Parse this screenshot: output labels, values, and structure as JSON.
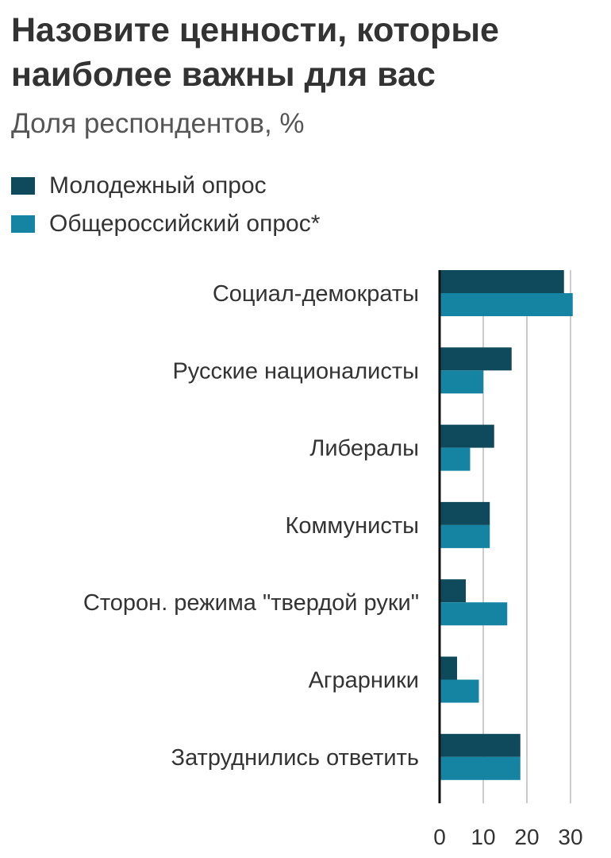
{
  "chart_data": {
    "type": "bar",
    "orientation": "horizontal",
    "title": "Назовите ценности, которые наиболее важны для вас",
    "subtitle": "Доля респондентов, %",
    "categories": [
      "Социал-демократы",
      "Русские националисты",
      "Либералы",
      "Коммунисты",
      "Сторон. режима \"твердой руки\"",
      "Аграрники",
      "Затруднились ответить"
    ],
    "series": [
      {
        "name": "Молодежный опрос",
        "color": "#0e4a5c",
        "values": [
          28.5,
          16.5,
          12.5,
          11.5,
          6,
          4,
          18.5
        ]
      },
      {
        "name": "Общероссийский опрос*",
        "color": "#1584a3",
        "values": [
          30.5,
          10,
          7,
          11.5,
          15.5,
          9,
          18.5
        ]
      }
    ],
    "xlim": [
      0,
      30
    ],
    "xticks": [
      "0",
      "10",
      "20",
      "30"
    ],
    "grid": true,
    "legend_position": "top-left"
  }
}
